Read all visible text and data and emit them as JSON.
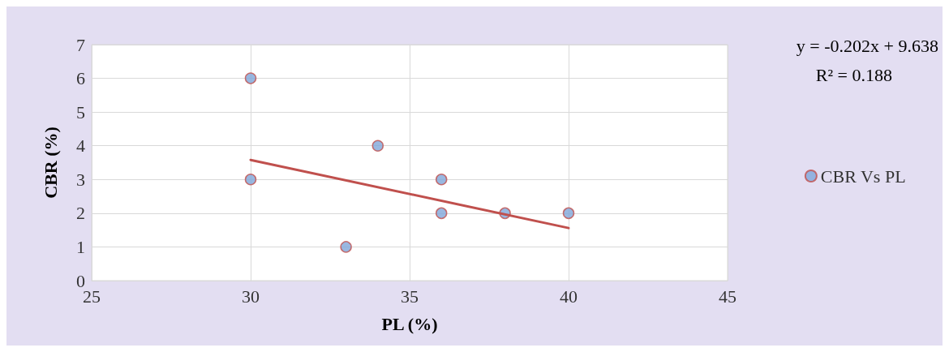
{
  "chart_data": {
    "type": "scatter",
    "xlabel": "PL (%)",
    "ylabel": "CBR (%)",
    "annotations": [
      "y = -0.202x + 9.638",
      "R² = 0.188"
    ],
    "series": [
      {
        "name": "CBR Vs PL",
        "color": "#7fa6d9",
        "x": [
          30,
          30,
          33,
          34,
          36,
          36,
          38,
          40
        ],
        "values": [
          6,
          3,
          1,
          4,
          3,
          2,
          2,
          2
        ]
      },
      {
        "type": "line",
        "color": "#c0504d",
        "x": [
          30,
          40
        ],
        "values": [
          3.58,
          1.56
        ],
        "marker": "none"
      }
    ],
    "xlim": [
      25,
      45
    ],
    "xticks": [
      25,
      30,
      35,
      40,
      45
    ],
    "ylim": [
      0,
      7
    ],
    "yticks": [
      0,
      1,
      2,
      3,
      4,
      5,
      6,
      7
    ],
    "grid": true,
    "legend": "right",
    "marker": "circle"
  }
}
